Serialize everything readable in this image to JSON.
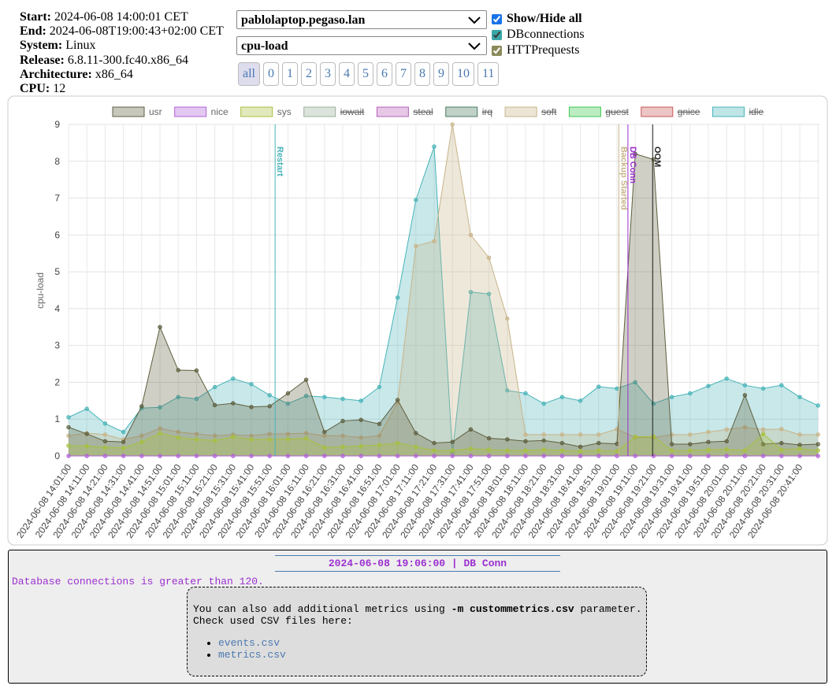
{
  "header": {
    "fields": [
      {
        "label": "Start:",
        "value": "2024-06-08 14:00:01 CET"
      },
      {
        "label": "End:",
        "value": "2024-06-08T19:00:43+02:00 CET"
      },
      {
        "label": "System:",
        "value": "Linux"
      },
      {
        "label": "Release:",
        "value": "6.8.11-300.fc40.x86_64"
      },
      {
        "label": "Architecture:",
        "value": "x86_64"
      },
      {
        "label": "CPU:",
        "value": "12"
      }
    ]
  },
  "selects": [
    "pablolaptop.pegaso.lan",
    "cpu-load"
  ],
  "toggles": [
    {
      "label": "Show/Hide all",
      "checked": true,
      "color": "#1a73e8"
    },
    {
      "label": "DBconnections",
      "checked": true,
      "color": "#3aa6a8"
    },
    {
      "label": "HTTPrequests",
      "checked": true,
      "color": "#8a8a5a"
    }
  ],
  "buttons": [
    "all",
    "0",
    "1",
    "2",
    "3",
    "4",
    "5",
    "6",
    "7",
    "8",
    "9",
    "10",
    "11"
  ],
  "chart_data": {
    "type": "area",
    "y_label": "cpu-load",
    "ylim": [
      0,
      9
    ],
    "yticks": [
      0,
      1,
      2,
      3,
      4,
      5,
      6,
      7,
      8,
      9
    ],
    "grid": true,
    "legend": "top",
    "categories": [
      "2024-06-08 14:01:00",
      "2024-06-08 14:11:00",
      "2024-06-08 14:21:00",
      "2024-06-08 14:31:00",
      "2024-06-08 14:41:00",
      "2024-06-08 14:51:00",
      "2024-06-08 15:01:00",
      "2024-06-08 15:11:00",
      "2024-06-08 15:21:00",
      "2024-06-08 15:31:00",
      "2024-06-08 15:41:00",
      "2024-06-08 15:51:00",
      "2024-06-08 16:01:00",
      "2024-06-08 16:11:00",
      "2024-06-08 16:21:00",
      "2024-06-08 16:31:00",
      "2024-06-08 16:41:00",
      "2024-06-08 16:51:00",
      "2024-06-08 17:01:00",
      "2024-06-08 17:11:00",
      "2024-06-08 17:21:00",
      "2024-06-08 17:31:00",
      "2024-06-08 17:41:00",
      "2024-06-08 17:51:00",
      "2024-06-08 18:01:00",
      "2024-06-08 18:11:00",
      "2024-06-08 18:21:00",
      "2024-06-08 18:31:00",
      "2024-06-08 18:41:00",
      "2024-06-08 18:51:00",
      "2024-06-08 19:01:00",
      "2024-06-08 19:11:00",
      "2024-06-08 19:21:00",
      "2024-06-08 19:31:00",
      "2024-06-08 19:41:00",
      "2024-06-08 19:51:00",
      "2024-06-08 20:01:00",
      "2024-06-08 20:11:00",
      "2024-06-08 20:21:00",
      "2024-06-08 20:31:00",
      "2024-06-08 20:41:00",
      null
    ],
    "series": [
      {
        "name": "usr",
        "color": "#5f5f3f",
        "hidden": false,
        "values": [
          0.78,
          0.6,
          0.4,
          0.38,
          1.35,
          3.5,
          2.33,
          2.32,
          1.38,
          1.43,
          1.33,
          1.35,
          1.7,
          2.07,
          0.65,
          0.95,
          0.98,
          0.87,
          1.52,
          0.62,
          0.35,
          0.38,
          0.72,
          0.48,
          0.45,
          0.4,
          0.42,
          0.35,
          0.25,
          0.35,
          0.33,
          8.2,
          8.05,
          0.32,
          0.32,
          0.38,
          0.4,
          1.65,
          0.32,
          0.35,
          0.3,
          0.32
        ]
      },
      {
        "name": "nice",
        "color": "#b060d8",
        "hidden": false,
        "values": [
          0,
          0,
          0,
          0,
          0,
          0,
          0,
          0,
          0,
          0,
          0,
          0,
          0,
          0,
          0,
          0,
          0,
          0,
          0,
          0,
          0,
          0,
          0,
          0,
          0,
          0,
          0,
          0,
          0,
          0,
          0,
          0,
          0,
          0,
          0,
          0,
          0,
          0,
          0,
          0,
          0,
          0
        ]
      },
      {
        "name": "sys",
        "color": "#a8c040",
        "hidden": false,
        "values": [
          0.28,
          0.27,
          0.23,
          0.22,
          0.38,
          0.62,
          0.5,
          0.45,
          0.42,
          0.52,
          0.45,
          0.45,
          0.46,
          0.48,
          0.23,
          0.25,
          0.27,
          0.3,
          0.35,
          0.25,
          0.15,
          0.15,
          0.2,
          0.17,
          0.15,
          0.15,
          0.17,
          0.15,
          0.13,
          0.15,
          0.13,
          0.52,
          0.53,
          0.15,
          0.15,
          0.17,
          0.18,
          0.15,
          0.6,
          0.17,
          0.2,
          0.15
        ]
      },
      {
        "name": "iowait",
        "color": "#9ab09a",
        "hidden": true
      },
      {
        "name": "steal",
        "color": "#b860b8",
        "hidden": true
      },
      {
        "name": "irq",
        "color": "#4a7a60",
        "hidden": true
      },
      {
        "name": "soft",
        "color": "#c8b488",
        "hidden": true,
        "values": [
          0.55,
          0.62,
          0.58,
          0.45,
          0.55,
          0.75,
          0.65,
          0.6,
          0.55,
          0.58,
          0.55,
          0.6,
          0.6,
          0.62,
          0.55,
          0.55,
          0.5,
          0.55,
          1.45,
          5.7,
          5.83,
          9.0,
          6.0,
          5.38,
          3.73,
          0.58,
          0.58,
          0.58,
          0.58,
          0.58,
          0.73,
          0.5,
          0.5,
          0.58,
          0.58,
          0.65,
          0.72,
          0.78,
          0.72,
          0.73,
          0.58,
          0.58
        ]
      },
      {
        "name": "guest",
        "color": "#40c850",
        "hidden": true
      },
      {
        "name": "gnice",
        "color": "#c85858",
        "hidden": true
      },
      {
        "name": "idle",
        "color": "#48b4b8",
        "hidden": true,
        "values": [
          1.05,
          1.28,
          0.88,
          0.65,
          1.3,
          1.32,
          1.6,
          1.55,
          1.87,
          2.1,
          1.95,
          1.65,
          1.42,
          1.63,
          1.6,
          1.55,
          1.5,
          1.87,
          4.3,
          6.95,
          8.4,
          0.1,
          4.45,
          4.4,
          1.78,
          1.7,
          1.42,
          1.6,
          1.5,
          1.88,
          1.83,
          2.0,
          1.42,
          1.6,
          1.7,
          1.9,
          2.1,
          1.92,
          1.83,
          1.92,
          1.6,
          1.37
        ]
      }
    ],
    "annotations": [
      {
        "text": "Restart",
        "x": 11.3,
        "color": "#48b4b8"
      },
      {
        "text": "Backup Started",
        "x": 30.1,
        "color": "#c8b488"
      },
      {
        "text": "DB Conn",
        "x": 30.6,
        "color": "#9b30d0"
      },
      {
        "text": "OOM",
        "x": 31.95,
        "color": "#222222"
      }
    ]
  },
  "event": {
    "title": "2024-06-08 19:06:00 | DB Conn",
    "message": "Database connections is greater than 120."
  },
  "info": {
    "line1_pre": "You can also add additional metrics using ",
    "line1_code": "-m custommetrics.csv",
    "line1_post": " parameter.",
    "line2": "Check used CSV files here:",
    "links": [
      "events.csv",
      "metrics.csv"
    ]
  }
}
